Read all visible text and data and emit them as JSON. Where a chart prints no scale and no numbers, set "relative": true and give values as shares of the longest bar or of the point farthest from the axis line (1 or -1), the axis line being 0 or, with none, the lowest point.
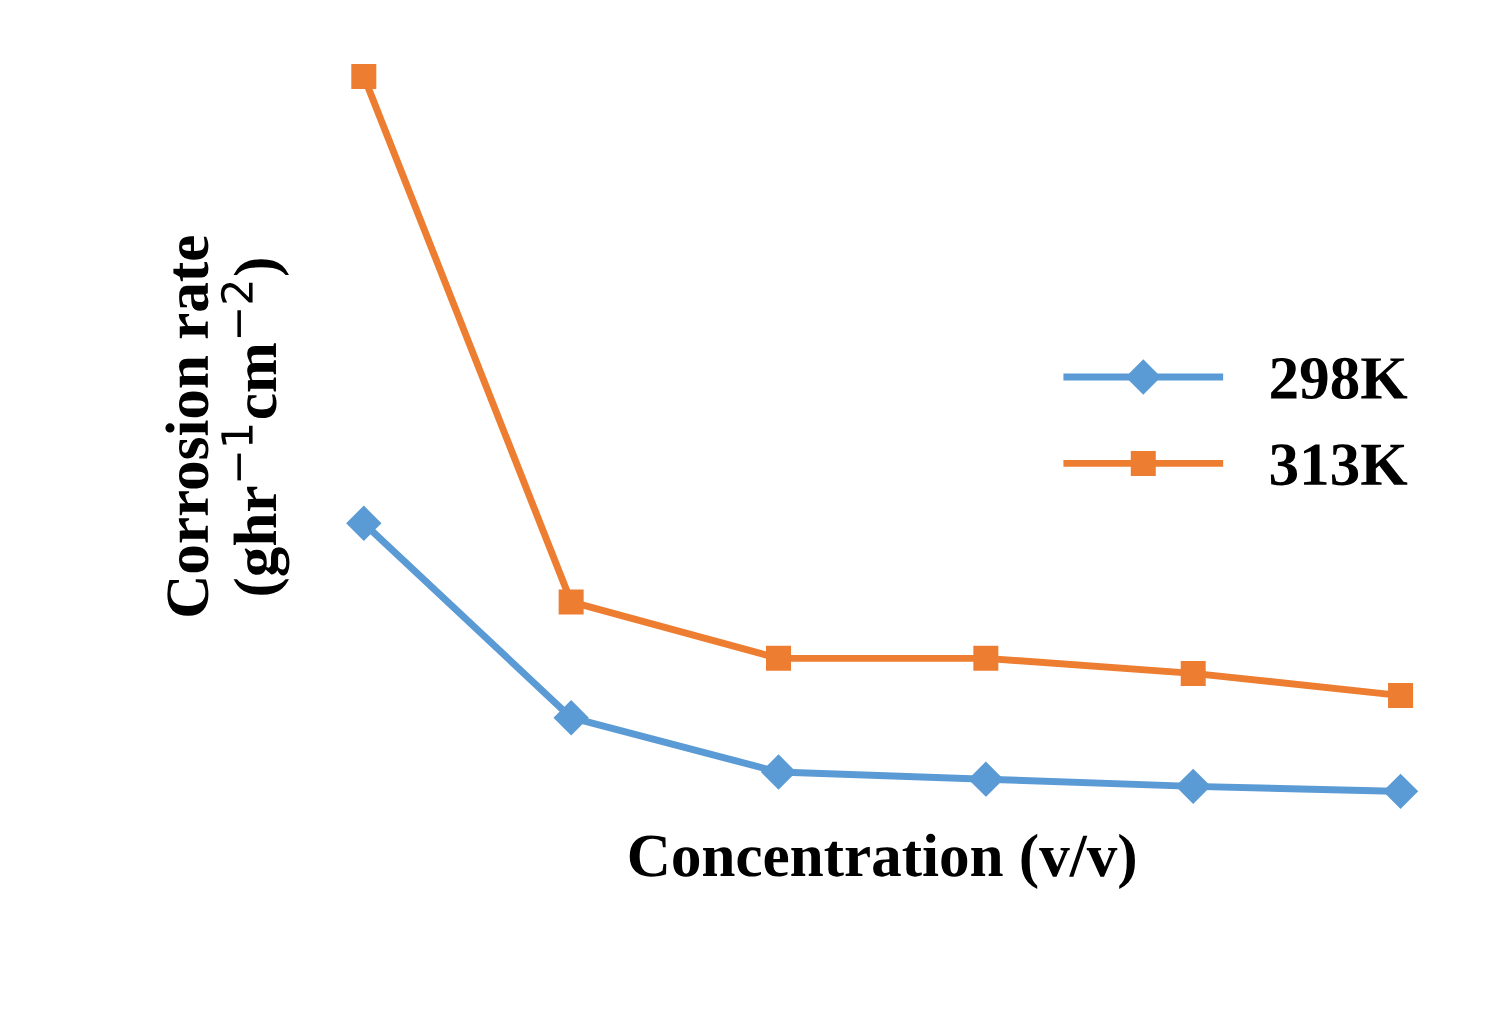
{
  "chart_data": {
    "type": "line",
    "relative": true,
    "xlabel": "Concentration (v/v)",
    "ylabel": "Corrosion rate\n(ghr$^{−1}$cm$^{−2}$)",
    "categories": [
      null,
      null,
      null,
      null,
      null,
      null
    ],
    "series": [
      {
        "name": "298K",
        "color": "#5b9bd5",
        "marker": "diamond",
        "values": [
          0.375,
          0.103,
          0.027,
          0.017,
          0.007,
          0
        ]
      },
      {
        "name": "313K",
        "color": "#ed7d31",
        "marker": "square",
        "values": [
          1.0,
          0.265,
          0.186,
          0.186,
          0.165,
          0.134
        ]
      }
    ],
    "legend": "right",
    "grid": false
  }
}
